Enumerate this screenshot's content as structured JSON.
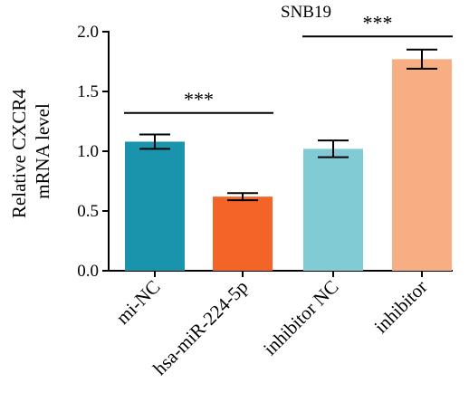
{
  "chart_data": {
    "type": "bar",
    "title": "SNB19",
    "ylabel": [
      "Relative CXCR4",
      "mRNA level"
    ],
    "xlabel": "",
    "ylim": [
      0,
      2.0
    ],
    "yticks": [
      "0.0",
      "0.5",
      "1.0",
      "1.5",
      "2.0"
    ],
    "categories": [
      "mi-NC",
      "hsa-miR-224-5p",
      "inhibitor NC",
      "inhibitor"
    ],
    "values": [
      1.08,
      0.62,
      1.02,
      1.77
    ],
    "errors": [
      0.06,
      0.03,
      0.07,
      0.08
    ],
    "colors": [
      "#1a94ad",
      "#f26427",
      "#80cbd4",
      "#f8ae83"
    ],
    "grid": false,
    "legend": "none",
    "significance": [
      {
        "from": 0,
        "to": 1,
        "label": "***",
        "y": 1.32
      },
      {
        "from": 2,
        "to": 3,
        "label": "***",
        "y": 1.96
      }
    ]
  }
}
